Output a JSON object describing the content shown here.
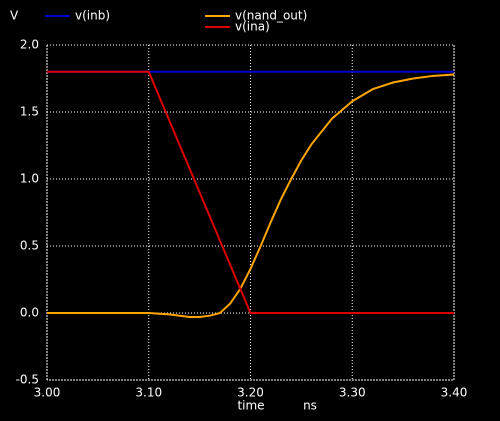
{
  "chart_data": {
    "type": "line",
    "y_label": "V",
    "x_label": "time",
    "x_unit": "ns",
    "x": [
      3.0,
      3.1,
      3.12,
      3.14,
      3.15,
      3.16,
      3.17,
      3.18,
      3.19,
      3.2,
      3.21,
      3.22,
      3.23,
      3.24,
      3.25,
      3.26,
      3.28,
      3.3,
      3.32,
      3.34,
      3.36,
      3.38,
      3.4
    ],
    "series": [
      {
        "name": "v(inb)",
        "color": "#0000cc",
        "values": [
          1.8,
          1.8,
          1.8,
          1.8,
          1.8,
          1.8,
          1.8,
          1.8,
          1.8,
          1.8,
          1.8,
          1.8,
          1.8,
          1.8,
          1.8,
          1.8,
          1.8,
          1.8,
          1.8,
          1.8,
          1.8,
          1.8,
          1.8
        ]
      },
      {
        "name": "v(nand_out)",
        "color": "#ffa500",
        "values": [
          0,
          0,
          -0.01,
          -0.03,
          -0.03,
          -0.02,
          0.0,
          0.07,
          0.18,
          0.33,
          0.5,
          0.68,
          0.85,
          1.0,
          1.14,
          1.26,
          1.45,
          1.58,
          1.67,
          1.72,
          1.75,
          1.77,
          1.78
        ]
      },
      {
        "name": "v(ina)",
        "color": "#dd0000",
        "values": [
          1.8,
          1.8,
          1.44,
          1.08,
          0.9,
          0.72,
          0.54,
          0.36,
          0.18,
          0,
          0,
          0,
          0,
          0,
          0,
          0,
          0,
          0,
          0,
          0,
          0,
          0,
          0
        ]
      }
    ],
    "xlim": [
      3.0,
      3.4
    ],
    "xticks": [
      {
        "value": 3.0,
        "label": "3.00"
      },
      {
        "value": 3.1,
        "label": "3.10"
      },
      {
        "value": 3.2,
        "label": "3.20"
      },
      {
        "value": 3.3,
        "label": "3.30"
      },
      {
        "value": 3.4,
        "label": "3.40"
      }
    ],
    "ylim": [
      -0.5,
      2.0
    ],
    "yticks": [
      {
        "value": -0.5,
        "label": "-0.5"
      },
      {
        "value": 0.0,
        "label": "0.0"
      },
      {
        "value": 0.5,
        "label": "0.5"
      },
      {
        "value": 1.0,
        "label": "1.0"
      },
      {
        "value": 1.5,
        "label": "1.5"
      },
      {
        "value": 2.0,
        "label": "2.0"
      }
    ],
    "grid": true
  }
}
